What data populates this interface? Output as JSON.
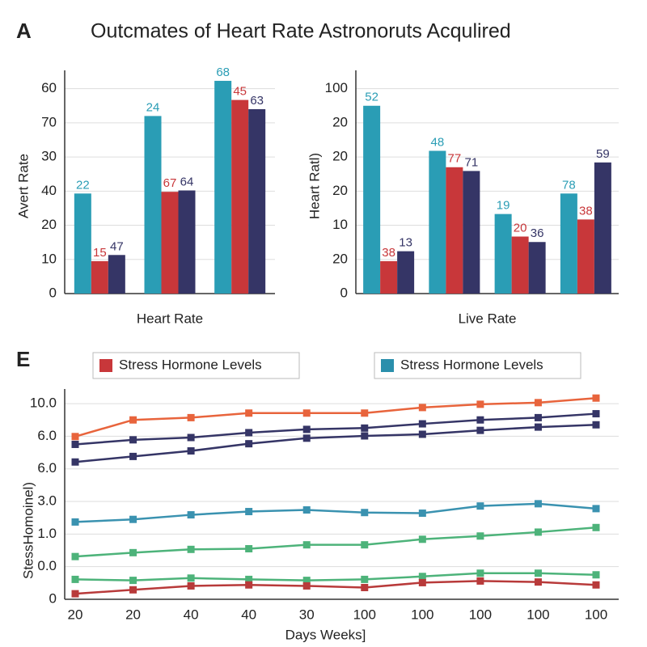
{
  "header": {
    "panel_label": "A",
    "title": "Outcmates of Heart Rate Astronoruts Acqulired"
  },
  "chart_data": [
    {
      "type": "bar",
      "ylabel": "Avert Rate",
      "xlabel": "Heart Rate",
      "categories": [
        null,
        null,
        null
      ],
      "ylim": [
        0,
        63
      ],
      "yticks": [
        0,
        10,
        20,
        {
          "value": 30,
          "label": "40"
        },
        {
          "value": 40,
          "label": "30"
        },
        {
          "value": 50,
          "label": "70"
        },
        60
      ],
      "grid": true,
      "series": [
        {
          "color": "#2a9db5",
          "values": [
            29.3,
            52,
            62.3
          ],
          "labels": [
            "22",
            "24",
            "68"
          ]
        },
        {
          "color": "#c8373a",
          "values": [
            9.5,
            29.8,
            56.7
          ],
          "labels": [
            "15",
            "67",
            "45"
          ]
        },
        {
          "color": "#353566",
          "values": [
            11.3,
            30.2,
            54
          ],
          "labels": [
            "47",
            "64",
            "63"
          ]
        }
      ]
    },
    {
      "type": "bar",
      "ylabel": "Heart Ratl)",
      "xlabel": "Live Rate",
      "categories": [
        null,
        null,
        null,
        null
      ],
      "ylim": [
        0,
        63
      ],
      "yticks": [
        0,
        {
          "value": 10,
          "label": "20"
        },
        {
          "value": 20,
          "label": "10"
        },
        {
          "value": 30,
          "label": "20"
        },
        {
          "value": 40,
          "label": "20"
        },
        {
          "value": 50,
          "label": "20"
        },
        {
          "value": 60,
          "label": "100"
        }
      ],
      "grid": true,
      "series": [
        {
          "color": "#2a9db5",
          "values": [
            55,
            41.8,
            23.3,
            29.3
          ],
          "labels": [
            "52",
            "48",
            "19",
            "78"
          ]
        },
        {
          "color": "#c8373a",
          "values": [
            9.5,
            37,
            16.7,
            21.7
          ],
          "labels": [
            "38",
            "77",
            "20",
            "38"
          ]
        },
        {
          "color": "#353566",
          "values": [
            12.4,
            35.9,
            15.1,
            38.4
          ],
          "labels": [
            "13",
            "71",
            "36",
            "59"
          ]
        }
      ]
    },
    {
      "type": "line",
      "panel_label": "E",
      "ylabel": "StessHomoinel)",
      "xlabel": "Days Weeks]",
      "categories": [
        "20",
        "20",
        "40",
        "40",
        "30",
        "100",
        "100",
        "100",
        "100",
        "100"
      ],
      "ylim": [
        0,
        6.2
      ],
      "yticks": [
        0,
        {
          "value": 1,
          "label": "0.0"
        },
        {
          "value": 2,
          "label": "1.0"
        },
        {
          "value": 3,
          "label": "3.0"
        },
        {
          "value": 4,
          "label": "6.0"
        },
        {
          "value": 5,
          "label": "6.0"
        },
        {
          "value": 6,
          "label": "10.0"
        }
      ],
      "grid": true,
      "legend": [
        {
          "name": "Stress Hormone Levels",
          "color": "#c8373a"
        },
        {
          "name": "Stress Hormone Levels",
          "color": "#2a8fac"
        }
      ],
      "series": [
        {
          "color": "#e8643c",
          "values": [
            4.99,
            5.5,
            5.57,
            5.71,
            5.71,
            5.71,
            5.88,
            5.98,
            6.03,
            6.17
          ]
        },
        {
          "color": "#353566",
          "values": [
            4.75,
            4.89,
            4.96,
            5.11,
            5.21,
            5.25,
            5.38,
            5.5,
            5.57,
            5.69
          ]
        },
        {
          "color": "#353566",
          "values": [
            4.21,
            4.38,
            4.55,
            4.77,
            4.94,
            5.01,
            5.06,
            5.18,
            5.28,
            5.35
          ]
        },
        {
          "color": "#3a92b0",
          "values": [
            2.37,
            2.45,
            2.59,
            2.69,
            2.74,
            2.66,
            2.64,
            2.86,
            2.93,
            2.78
          ]
        },
        {
          "color": "#4db37a",
          "values": [
            1.31,
            1.43,
            1.53,
            1.55,
            1.67,
            1.67,
            1.84,
            1.94,
            2.06,
            2.2
          ]
        },
        {
          "color": "#4db37a",
          "values": [
            0.61,
            0.58,
            0.65,
            0.61,
            0.58,
            0.61,
            0.7,
            0.8,
            0.8,
            0.75
          ]
        },
        {
          "color": "#b83a3a",
          "values": [
            0.17,
            0.29,
            0.41,
            0.44,
            0.41,
            0.36,
            0.51,
            0.56,
            0.53,
            0.44
          ]
        }
      ]
    }
  ]
}
